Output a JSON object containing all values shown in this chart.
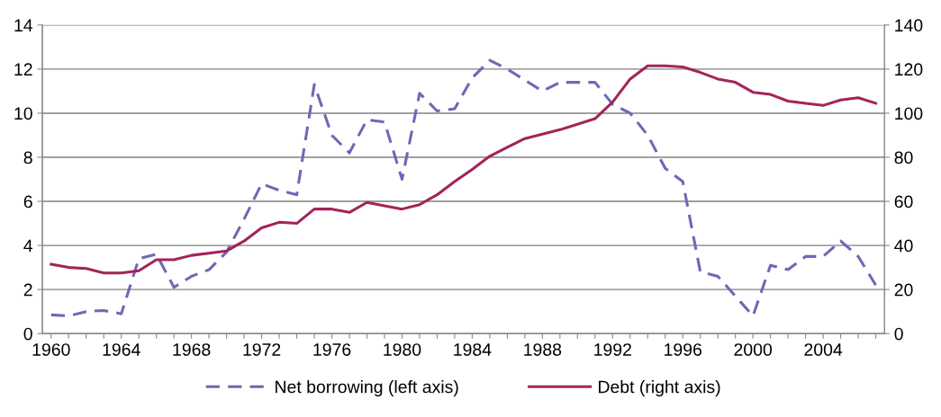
{
  "chart_data": {
    "type": "line",
    "categories": [
      "1960",
      null,
      null,
      null,
      "1964",
      null,
      null,
      null,
      "1968",
      null,
      null,
      null,
      "1972",
      null,
      null,
      null,
      "1976",
      null,
      null,
      null,
      "1980",
      null,
      null,
      null,
      "1984",
      null,
      null,
      null,
      "1988",
      null,
      null,
      null,
      "1992",
      null,
      null,
      null,
      "1996",
      null,
      null,
      null,
      "2000",
      null,
      null,
      null,
      "2004",
      null,
      null,
      null
    ],
    "series": [
      {
        "name": "Net borrowing (left axis)",
        "color": "#6a6ab5",
        "line_style": "dashed",
        "values": [
          0.85,
          0.8,
          1.0,
          1.05,
          0.9,
          3.4,
          3.6,
          2.1,
          2.6,
          2.9,
          3.7,
          5.2,
          6.8,
          6.5,
          6.3,
          11.3,
          9.0,
          8.2,
          9.7,
          9.6,
          7.0,
          10.9,
          10.1,
          10.2,
          11.6,
          12.4,
          12.0,
          11.5,
          11.0,
          11.4,
          11.4,
          11.4,
          10.4,
          10.0,
          9.0,
          7.5,
          6.9,
          2.8,
          2.6,
          1.7,
          0.8,
          3.1,
          2.9,
          3.5,
          3.5,
          4.2,
          3.5,
          2.2
        ]
      },
      {
        "name": "Debt (right axis)",
        "color": "#a3245a",
        "line_style": "solid",
        "axis": "y2",
        "values": [
          31.5,
          30,
          29.5,
          27.5,
          27.5,
          28.5,
          33.5,
          33.5,
          35.5,
          36.5,
          37.5,
          42,
          48,
          50.5,
          50,
          56.5,
          56.5,
          55,
          59.5,
          58,
          56.5,
          58.5,
          63,
          69,
          74.5,
          80.5,
          84.5,
          88.5,
          90.5,
          92.5,
          95,
          97.5,
          105,
          115.5,
          121.5,
          121.5,
          121,
          118.5,
          115.5,
          114,
          109.5,
          108.5,
          105.5,
          104.5,
          103.5,
          106,
          107,
          104.5
        ]
      }
    ],
    "ylim": [
      0,
      14
    ],
    "yticks": [
      0,
      2,
      4,
      6,
      8,
      10,
      12,
      14
    ],
    "y2lim": [
      0,
      140
    ],
    "y2ticks": [
      0,
      20,
      40,
      60,
      80,
      100,
      120,
      140
    ],
    "grid": "y",
    "legend": "bottom",
    "marker": "none"
  }
}
